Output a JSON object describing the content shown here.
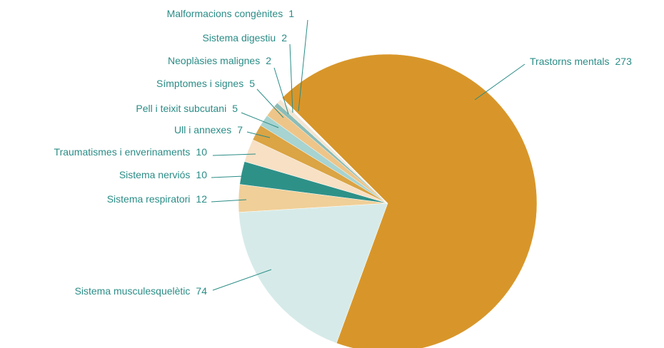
{
  "chart_data": {
    "type": "pie",
    "categories": [
      "Trastorns mentals",
      "Sistema musculesquelètic",
      "Sistema respiratori",
      "Sistema nerviós",
      "Traumatismes i enverinaments",
      "Ull i annexes",
      "Pell i teixit subcutani",
      "Símptomes i signes",
      "Neoplàsies malignes",
      "Sistema digestiu",
      "Malformacions congènites"
    ],
    "values": [
      273,
      74,
      12,
      10,
      10,
      7,
      5,
      5,
      2,
      2,
      1
    ],
    "colors": [
      "#d8962a",
      "#d6ebe9",
      "#f0cf98",
      "#2e9188",
      "#f7e0c4",
      "#dba444",
      "#a7d3d0",
      "#eec589",
      "#8bbdb8",
      "#f3e6d4",
      "#ffffff"
    ]
  }
}
